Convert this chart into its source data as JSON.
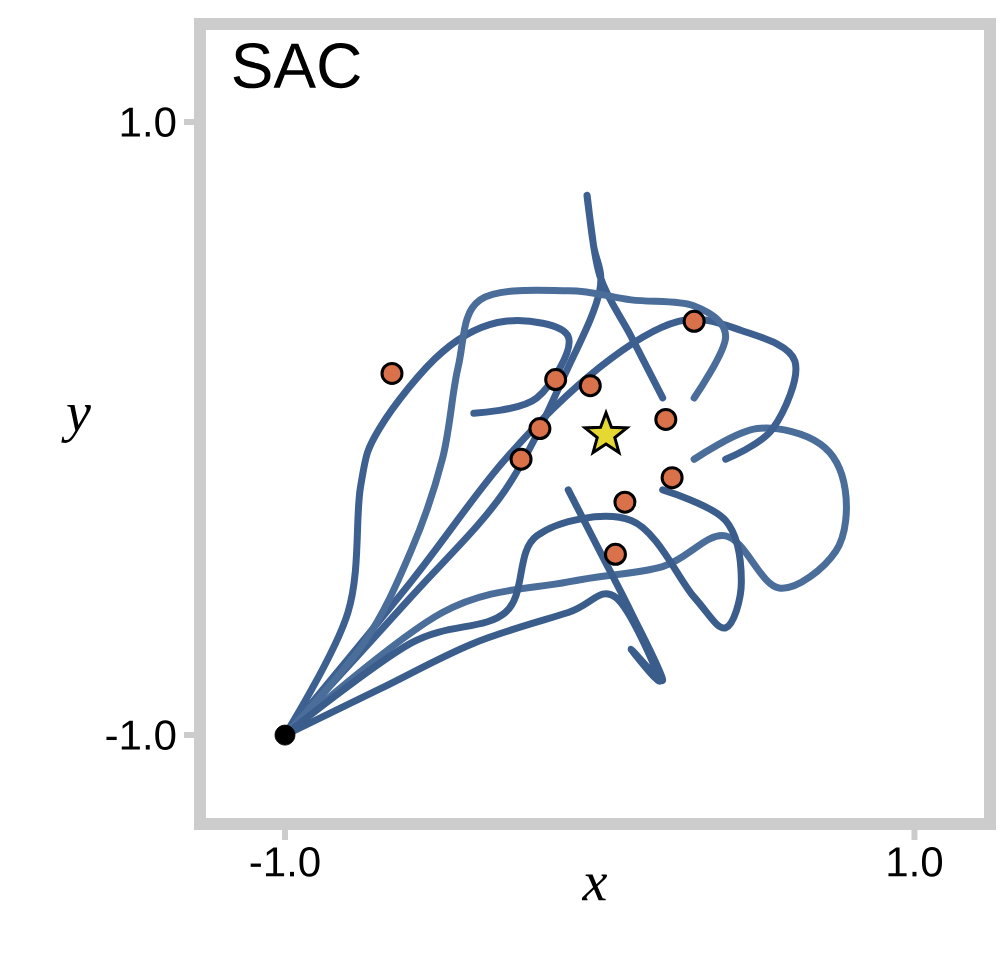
{
  "chart_data": {
    "type": "line",
    "title": "SAC",
    "xlabel": "x",
    "ylabel": "y",
    "xlim": [
      -1.27,
      1.24
    ],
    "ylim": [
      -1.29,
      1.32
    ],
    "xticks": [
      {
        "value": -1,
        "label": "-1.0"
      },
      {
        "value": 1,
        "label": "1.0"
      }
    ],
    "yticks": [
      {
        "value": -1,
        "label": "-1.0"
      },
      {
        "value": 1,
        "label": "1.0"
      }
    ],
    "grid": false,
    "series": [
      {
        "color": "#3d6090",
        "marker": "none",
        "x": [
          -1,
          -0.6,
          -0.3,
          -0.1,
          0.0,
          -0.02,
          -0.04,
          0.0,
          0.1,
          0.2
        ],
        "values": [
          -1,
          -0.55,
          -0.2,
          0.2,
          0.45,
          0.6,
          0.76,
          0.5,
          0.3,
          0.1
        ]
      },
      {
        "color": "#3d6090",
        "marker": "none",
        "x": [
          -1,
          -0.8,
          -0.76,
          -0.7,
          -0.5,
          -0.3,
          -0.1,
          -0.2,
          -0.4
        ],
        "values": [
          -1,
          -0.6,
          -0.19,
          0.0,
          0.25,
          0.35,
          0.3,
          0.1,
          0.05
        ]
      },
      {
        "color": "#4a6d9a",
        "marker": "none",
        "x": [
          -1,
          -0.5,
          -0.1,
          0.2,
          0.4,
          0.57,
          0.75,
          0.78,
          0.7,
          0.5,
          0.3
        ],
        "values": [
          -1,
          -0.6,
          -0.5,
          -0.45,
          -0.35,
          -0.52,
          -0.4,
          -0.2,
          -0.05,
          0.0,
          -0.1
        ]
      },
      {
        "color": "#3d6090",
        "marker": "none",
        "x": [
          -1,
          -0.6,
          -0.3,
          0.0,
          0.25,
          0.45,
          0.62,
          0.55,
          0.4
        ],
        "values": [
          -1,
          -0.5,
          -0.1,
          0.2,
          0.35,
          0.32,
          0.22,
          0.0,
          -0.1
        ]
      },
      {
        "color": "#3a5d8c",
        "marker": "none",
        "x": [
          -1,
          -0.7,
          -0.4,
          -0.1,
          0.05,
          0.19,
          0.1,
          0.2,
          0.1,
          0.0,
          -0.1
        ],
        "values": [
          -1,
          -0.85,
          -0.7,
          -0.6,
          -0.55,
          -0.82,
          -0.72,
          -0.82,
          -0.6,
          -0.4,
          -0.2
        ]
      },
      {
        "color": "#4a6d9a",
        "marker": "none",
        "x": [
          -1,
          -0.75,
          -0.6,
          -0.5,
          -0.45,
          -0.38,
          -0.1,
          0.1,
          0.3,
          0.4,
          0.3
        ],
        "values": [
          -1,
          -0.7,
          -0.4,
          -0.1,
          0.2,
          0.42,
          0.45,
          0.42,
          0.4,
          0.3,
          0.1
        ]
      },
      {
        "color": "#3a5d8c",
        "marker": "none",
        "x": [
          -1,
          -0.6,
          -0.3,
          -0.2,
          0.1,
          0.3,
          0.4,
          0.45,
          0.4,
          0.2
        ],
        "values": [
          -1,
          -0.7,
          -0.6,
          -0.35,
          -0.3,
          -0.55,
          -0.65,
          -0.5,
          -0.3,
          -0.2
        ]
      },
      {
        "type": "scatter",
        "color": "#d9714a",
        "marker": "circle",
        "x": [
          -0.66,
          -0.14,
          -0.03,
          0.3,
          0.21,
          -0.19,
          -0.25,
          0.23,
          0.08,
          0.05
        ],
        "values": [
          0.18,
          0.16,
          0.14,
          0.35,
          0.03,
          0.0,
          -0.1,
          -0.16,
          -0.24,
          -0.41
        ]
      },
      {
        "type": "scatter",
        "color": "#e6d832",
        "marker": "star",
        "x": [
          0.02
        ],
        "values": [
          -0.02
        ]
      },
      {
        "type": "scatter",
        "color": "#000000",
        "marker": "circle",
        "x": [
          -1.0
        ],
        "values": [
          -1.0
        ]
      }
    ]
  }
}
